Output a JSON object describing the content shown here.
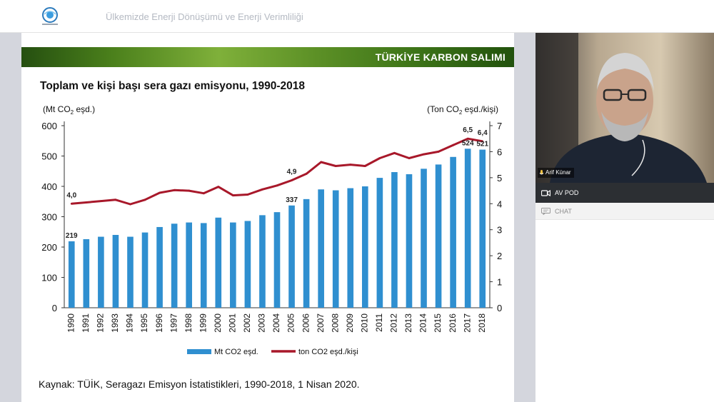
{
  "header": {
    "meeting_title": "Ülkemizde Enerji Dönüşümü ve Enerji Verimliliği"
  },
  "slide": {
    "banner_title": "TÜRKİYE KARBON SALIMI",
    "source": "Kaynak: TÜİK, Seragazı Emisyon İstatistikleri, 1990-2018, 1 Nisan 2020."
  },
  "chart_data": {
    "type": "bar",
    "title": "Toplam ve kişi başı sera gazı emisyonu, 1990-2018",
    "ylabel_left": {
      "pre": "(Mt CO",
      "sub": "2",
      "post": " eşd.)"
    },
    "ylabel_right": {
      "pre": "(Ton CO",
      "sub": "2",
      "post": " eşd./kişi)"
    },
    "categories": [
      "1990",
      "1991",
      "1992",
      "1993",
      "1994",
      "1995",
      "1996",
      "1997",
      "1998",
      "1999",
      "2000",
      "2001",
      "2002",
      "2003",
      "2004",
      "2005",
      "2006",
      "2007",
      "2008",
      "2009",
      "2010",
      "2011",
      "2012",
      "2013",
      "2014",
      "2015",
      "2016",
      "2017",
      "2018"
    ],
    "ylim": [
      0,
      600
    ],
    "yticks": [
      0,
      100,
      200,
      300,
      400,
      500,
      600
    ],
    "y2lim": [
      0,
      7
    ],
    "y2ticks": [
      0,
      1,
      2,
      3,
      4,
      5,
      6,
      7
    ],
    "grid": false,
    "legend_position": "bottom",
    "series": [
      {
        "name": "Mt CO2 eşd.",
        "kind": "bar",
        "axis": "left",
        "color": "#2f8fd0",
        "values": [
          219,
          226,
          234,
          240,
          234,
          248,
          266,
          277,
          281,
          279,
          297,
          281,
          286,
          305,
          315,
          337,
          358,
          390,
          387,
          394,
          400,
          428,
          447,
          440,
          458,
          472,
          497,
          524,
          521
        ]
      },
      {
        "name": "ton CO2 eşd./kişi",
        "kind": "line",
        "axis": "right",
        "color": "#a8182a",
        "values": [
          4.0,
          4.05,
          4.1,
          4.15,
          3.98,
          4.15,
          4.42,
          4.52,
          4.5,
          4.4,
          4.65,
          4.32,
          4.35,
          4.55,
          4.7,
          4.9,
          5.15,
          5.6,
          5.45,
          5.5,
          5.45,
          5.75,
          5.95,
          5.75,
          5.9,
          6.0,
          6.25,
          6.5,
          6.4
        ]
      }
    ],
    "annotations": [
      {
        "series": 0,
        "index": 0,
        "text": "219"
      },
      {
        "series": 0,
        "index": 15,
        "text": "337"
      },
      {
        "series": 0,
        "index": 27,
        "text": "524"
      },
      {
        "series": 0,
        "index": 28,
        "text": "521"
      },
      {
        "series": 1,
        "index": 0,
        "text": "4,0"
      },
      {
        "series": 1,
        "index": 15,
        "text": "4,9"
      },
      {
        "series": 1,
        "index": 27,
        "text": "6,5"
      },
      {
        "series": 1,
        "index": 28,
        "text": "6,4"
      }
    ]
  },
  "video": {
    "participant_name": "Arif Künar"
  },
  "pods": {
    "av_label": "AV POD",
    "chat_label": "CHAT"
  },
  "colors": {
    "banner_green": "#4a7f1b",
    "side_dark": "#2c2f33",
    "content_bg": "#d4d6dd"
  },
  "icons": {
    "logo": "circle-logo",
    "mic": "mic-icon",
    "camera": "camera-icon",
    "chat": "chat-icon"
  }
}
